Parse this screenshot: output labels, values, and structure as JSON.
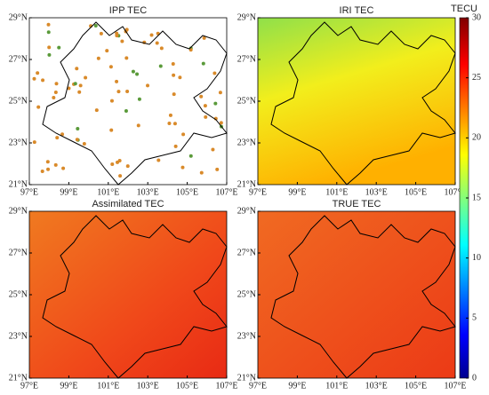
{
  "maps": {
    "panels": [
      {
        "title": "IPP TEC",
        "field": "ipp"
      },
      {
        "title": "IRI TEC",
        "field": "iri"
      },
      {
        "title": "Assimilated TEC",
        "field": "assim"
      },
      {
        "title": "TRUE TEC",
        "field": "true"
      }
    ],
    "xlim": [
      97,
      107
    ],
    "ylim": [
      21,
      29
    ],
    "xticks": [
      {
        "value": 97,
        "label": "97°E"
      },
      {
        "value": 99,
        "label": "99°E"
      },
      {
        "value": 101,
        "label": "101°E"
      },
      {
        "value": 103,
        "label": "103°E"
      },
      {
        "value": 105,
        "label": "105°E"
      },
      {
        "value": 107,
        "label": "107°E"
      }
    ],
    "yticks": [
      {
        "value": 21,
        "label": "21°N"
      },
      {
        "value": 23,
        "label": "23°N"
      },
      {
        "value": 25,
        "label": "25°N"
      },
      {
        "value": 27,
        "label": "27°N"
      },
      {
        "value": 29,
        "label": "29°N"
      }
    ],
    "colorbar": {
      "label": "TECU",
      "lim": [
        0,
        30
      ],
      "ticks": [
        0,
        5,
        10,
        15,
        20,
        25,
        30
      ]
    }
  }
}
